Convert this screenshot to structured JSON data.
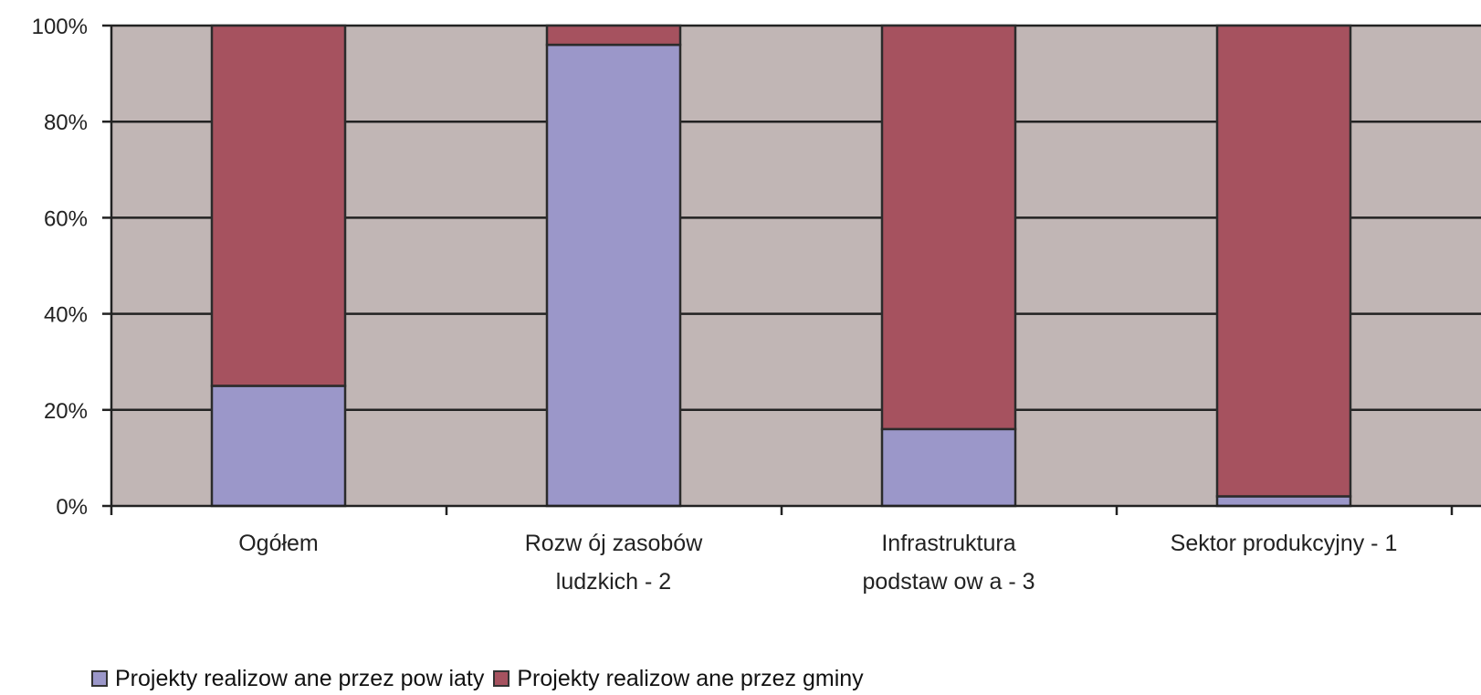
{
  "chart_data": {
    "type": "bar",
    "stacked": true,
    "percent": true,
    "categories": [
      [
        "Ogółem"
      ],
      [
        "Rozw ój zasobów",
        "ludzkich - 2"
      ],
      [
        "Infrastruktura",
        "podstaw ow a - 3"
      ],
      [
        "Sektor produkcyjny - 1"
      ]
    ],
    "series": [
      {
        "name": "Projekty realizow ane przez pow iaty",
        "values": [
          25,
          96,
          16,
          2
        ],
        "color": "#9b97c9"
      },
      {
        "name": "Projekty realizow ane przez gminy",
        "values": [
          75,
          4,
          84,
          98
        ],
        "color": "#a6525f"
      }
    ],
    "yticks": [
      "0%",
      "20%",
      "40%",
      "60%",
      "80%",
      "100%"
    ],
    "ylim": [
      0,
      100
    ],
    "grid": true,
    "plot_background": "#c1b6b5",
    "legend_position": "bottom-left"
  }
}
